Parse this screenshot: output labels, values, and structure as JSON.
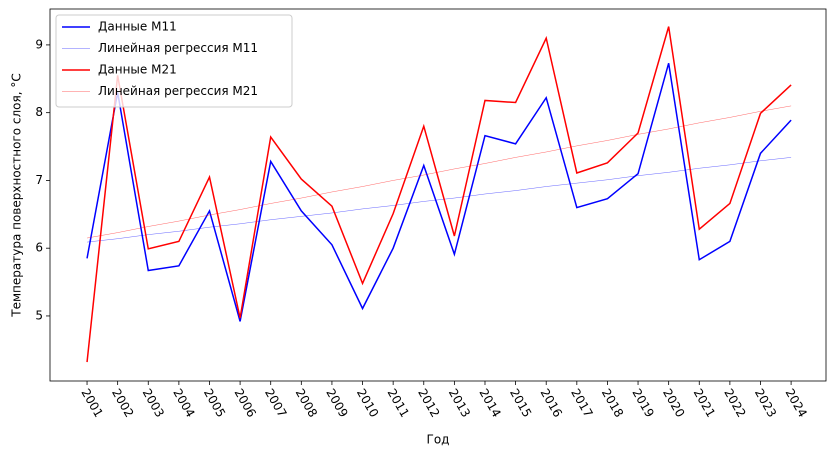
{
  "chart_data": {
    "type": "line",
    "xlabel": "Год",
    "ylabel": "Температура поверхностного слоя, °C",
    "x": [
      2001,
      2002,
      2003,
      2004,
      2005,
      2006,
      2007,
      2008,
      2009,
      2010,
      2011,
      2012,
      2013,
      2014,
      2015,
      2016,
      2017,
      2018,
      2019,
      2020,
      2021,
      2022,
      2023,
      2024
    ],
    "xlim": [
      1999.79,
      2025.14
    ],
    "xticks": [
      2001,
      2002,
      2003,
      2004,
      2005,
      2006,
      2007,
      2008,
      2009,
      2010,
      2011,
      2012,
      2013,
      2014,
      2015,
      2016,
      2017,
      2018,
      2019,
      2020,
      2021,
      2022,
      2023,
      2024
    ],
    "ylim": [
      4.04,
      9.53
    ],
    "yticks": [
      5,
      6,
      7,
      8,
      9
    ],
    "legend": "upper left",
    "series": [
      {
        "name": "Данные М11",
        "color": "#0000ff",
        "linewidth": 1.5,
        "values": [
          5.85,
          8.3,
          5.67,
          5.74,
          6.55,
          4.92,
          7.28,
          6.55,
          6.05,
          5.11,
          6.0,
          7.22,
          5.91,
          7.66,
          7.54,
          8.22,
          6.6,
          6.73,
          7.1,
          8.73,
          5.83,
          6.1,
          7.4,
          7.89
        ]
      },
      {
        "name": "Линейная регрессия М11",
        "color": "#0000ff",
        "linewidth": 0.3,
        "values": [
          6.09,
          6.14,
          6.2,
          6.25,
          6.31,
          6.36,
          6.42,
          6.47,
          6.52,
          6.58,
          6.63,
          6.69,
          6.74,
          6.8,
          6.85,
          6.91,
          6.96,
          7.01,
          7.07,
          7.12,
          7.18,
          7.23,
          7.29,
          7.34
        ]
      },
      {
        "name": "Данные М21",
        "color": "#ff0000",
        "linewidth": 1.5,
        "values": [
          4.32,
          8.55,
          5.99,
          6.1,
          7.05,
          4.97,
          7.64,
          7.02,
          6.62,
          5.48,
          6.51,
          7.8,
          6.18,
          8.18,
          8.15,
          9.1,
          7.11,
          7.26,
          7.7,
          9.27,
          6.28,
          6.66,
          7.99,
          8.41
        ]
      },
      {
        "name": "Линейная регрессия М21",
        "color": "#ff0000",
        "linewidth": 0.3,
        "values": [
          6.15,
          6.23,
          6.32,
          6.4,
          6.49,
          6.57,
          6.66,
          6.74,
          6.83,
          6.91,
          7.0,
          7.08,
          7.17,
          7.25,
          7.34,
          7.42,
          7.51,
          7.59,
          7.68,
          7.76,
          7.85,
          7.93,
          8.02,
          8.1
        ]
      }
    ]
  }
}
